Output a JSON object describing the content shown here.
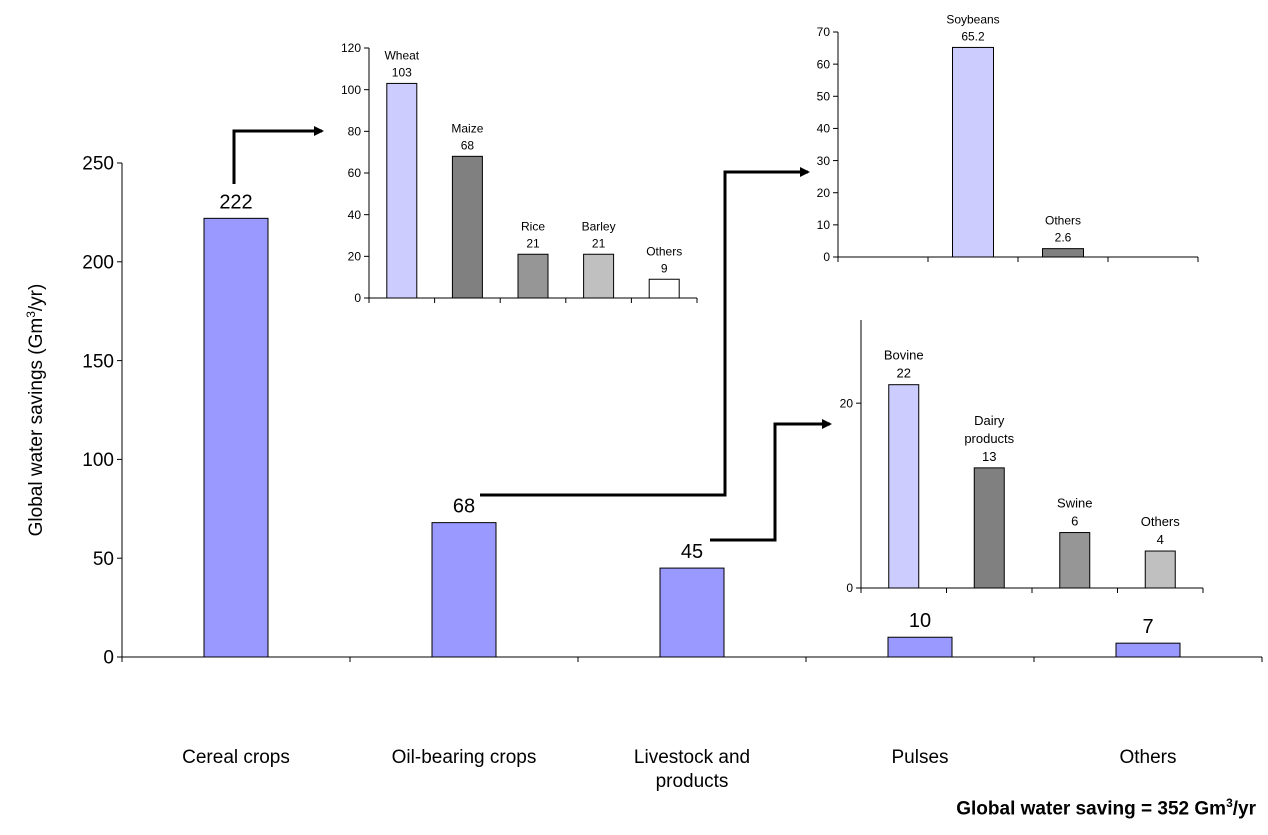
{
  "chart_data": [
    {
      "id": "main",
      "type": "bar",
      "categories": [
        "Cereal crops",
        "Oil-bearing crops",
        "Livestock and\nproducts",
        "Pulses",
        "Others"
      ],
      "values": [
        222,
        68,
        45,
        10,
        7
      ],
      "data_labels": [
        "222",
        "68",
        "45",
        "10",
        "7"
      ],
      "ylabel": "Global water savings (Gm3/yr)",
      "ylim": [
        0,
        250
      ],
      "yticks": [
        0,
        50,
        100,
        150,
        200,
        250
      ],
      "colors": [
        "#9999ff"
      ],
      "grid": false
    },
    {
      "id": "cereal-breakdown",
      "type": "bar",
      "categories": [
        "Wheat",
        "Maize",
        "Rice",
        "Barley",
        "Others"
      ],
      "values": [
        103,
        68,
        21,
        21,
        9
      ],
      "data_labels": [
        "103",
        "68",
        "21",
        "21",
        "9"
      ],
      "ylim": [
        0,
        120
      ],
      "yticks": [
        0,
        20,
        40,
        60,
        80,
        100,
        120
      ],
      "colors": [
        "#ccccff",
        "#808080",
        "#969696",
        "#c0c0c0",
        "#ffffff"
      ]
    },
    {
      "id": "oil-breakdown",
      "type": "bar",
      "categories": [
        "",
        "Soybeans",
        "Others",
        ""
      ],
      "values": [
        null,
        65.2,
        2.6,
        null
      ],
      "data_labels": [
        "",
        "65.2",
        "2.6",
        ""
      ],
      "ylim": [
        0,
        70
      ],
      "yticks": [
        0,
        10,
        20,
        30,
        40,
        50,
        60,
        70
      ],
      "colors": [
        "#ccccff",
        "#ccccff",
        "#808080",
        "#ffffff"
      ]
    },
    {
      "id": "livestock-breakdown",
      "type": "bar",
      "categories": [
        "Bovine",
        "Dairy\nproducts",
        "Swine",
        "Others"
      ],
      "values": [
        22,
        13,
        6,
        4
      ],
      "data_labels": [
        "22",
        "13",
        "6",
        "4"
      ],
      "ylim": [
        0,
        29
      ],
      "yticks": [
        0,
        20
      ],
      "colors": [
        "#ccccff",
        "#808080",
        "#969696",
        "#c0c0c0"
      ]
    }
  ],
  "footnote": {
    "prefix": "Global water saving = 352 Gm",
    "sup": "3",
    "suffix": "/yr"
  }
}
